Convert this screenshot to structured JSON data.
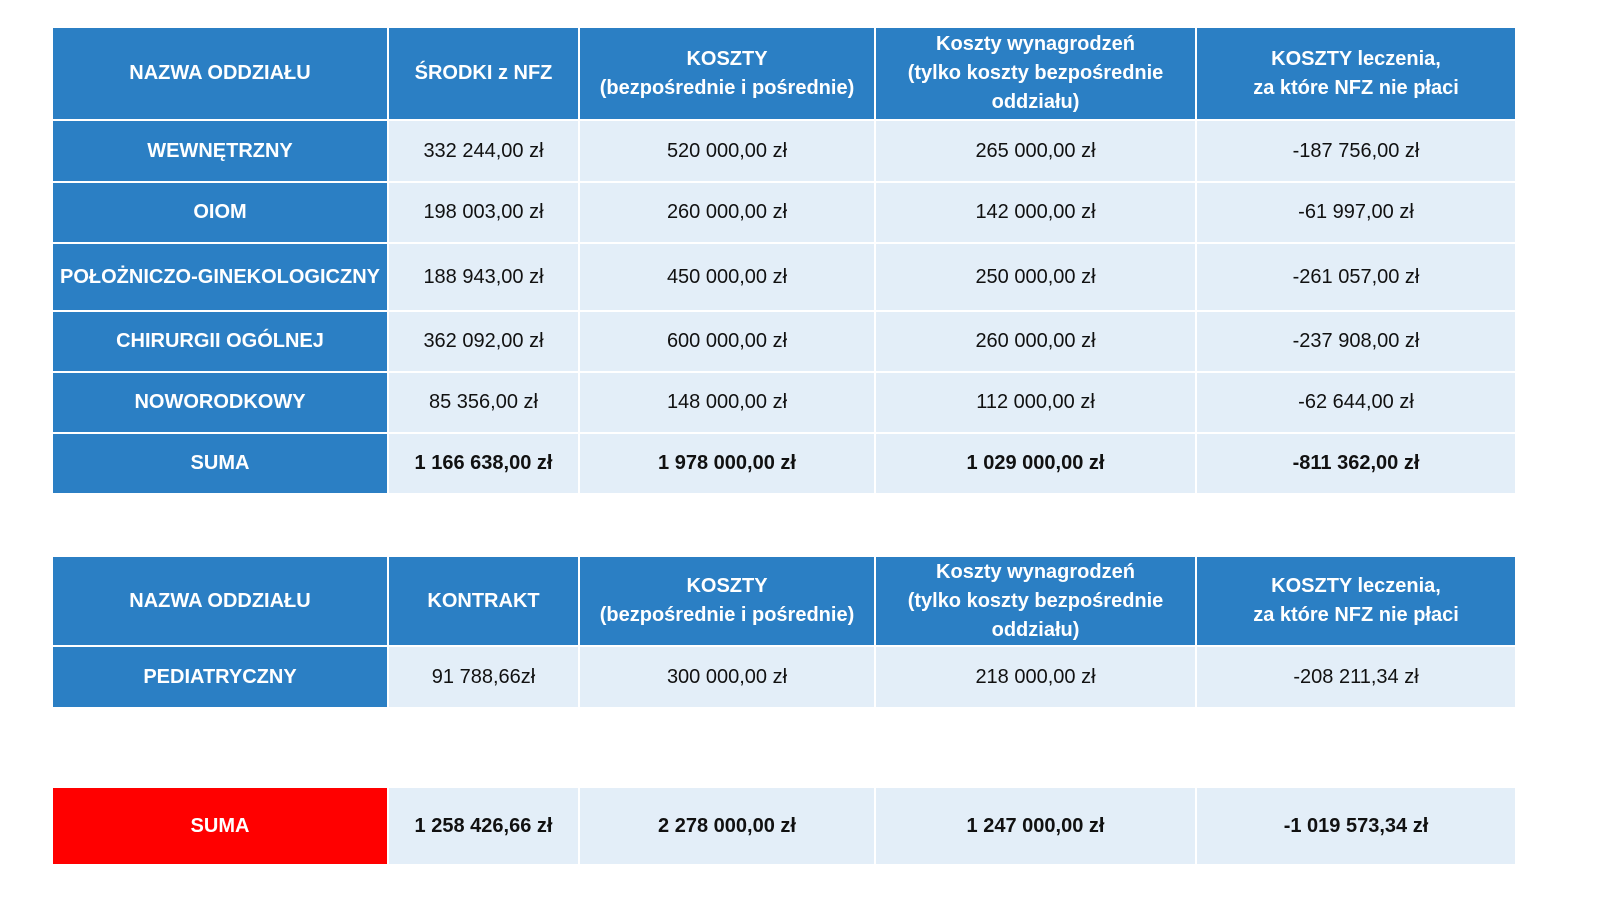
{
  "table1": {
    "headers": [
      [
        "NAZWA ODDZIAŁU"
      ],
      [
        "ŚRODKI z NFZ"
      ],
      [
        "KOSZTY",
        "(bezpośrednie i pośrednie)"
      ],
      [
        "Koszty wynagrodzeń",
        "(tylko koszty bezpośrednie",
        "oddziału)"
      ],
      [
        "KOSZTY leczenia,",
        "za które NFZ nie płaci"
      ]
    ],
    "rows": [
      [
        "WEWNĘTRZNY",
        "332 244,00 zł",
        "520 000,00 zł",
        "265 000,00 zł",
        "-187 756,00 zł"
      ],
      [
        "OIOM",
        "198 003,00 zł",
        "260 000,00 zł",
        "142 000,00 zł",
        "-61 997,00 zł"
      ],
      [
        "POŁOŻNICZO-GINEKOLOGICZNY",
        "188 943,00 zł",
        "450 000,00 zł",
        "250 000,00 zł",
        "-261 057,00 zł"
      ],
      [
        "CHIRURGII OGÓLNEJ",
        "362 092,00 zł",
        "600 000,00 zł",
        "260 000,00 zł",
        "-237 908,00 zł"
      ],
      [
        "NOWORODKOWY",
        "85 356,00 zł",
        "148 000,00 zł",
        "112 000,00 zł",
        "-62 644,00 zł"
      ],
      [
        "SUMA",
        "1 166 638,00 zł",
        "1 978 000,00 zł",
        "1 029 000,00 zł",
        "-811 362,00 zł"
      ]
    ]
  },
  "table2": {
    "headers": [
      [
        "NAZWA ODDZIAŁU"
      ],
      [
        "KONTRAKT"
      ],
      [
        "KOSZTY",
        "(bezpośrednie i pośrednie)"
      ],
      [
        "Koszty wynagrodzeń",
        "(tylko koszty bezpośrednie",
        "oddziału)"
      ],
      [
        "KOSZTY leczenia,",
        "za które NFZ nie płaci"
      ]
    ],
    "rows": [
      [
        "PEDIATRYCZNY",
        "91 788,66zł",
        "300 000,00 zł",
        "218 000,00 zł",
        "-208 211,34 zł"
      ]
    ]
  },
  "total": {
    "cells": [
      "SUMA",
      "1 258 426,66 zł",
      "2 278 000,00 zł",
      "1 247 000,00 zł",
      "-1 019 573,34 zł"
    ]
  },
  "colors": {
    "header_blue": "#2b7fc4",
    "cell_light": "#e3eef8",
    "total_red": "#ff0000"
  }
}
